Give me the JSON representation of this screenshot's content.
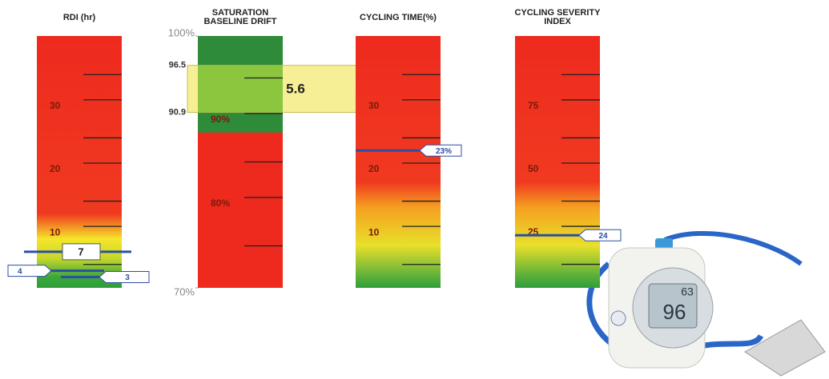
{
  "chart_data": [
    {
      "type": "gauge",
      "title": [
        "RDI (hr)"
      ],
      "ylim": [
        1.3,
        41.1
      ],
      "yticks": [
        10,
        20,
        30
      ],
      "minor_ticks": [
        5,
        15,
        25,
        35
      ],
      "gradient": [
        [
          1.3,
          "#2e9e3a"
        ],
        [
          3,
          "#3aa83a"
        ],
        [
          6,
          "#c8d82a"
        ],
        [
          9,
          "#f5e62a"
        ],
        [
          13,
          "#f03a20"
        ],
        [
          41.1,
          "#ee2a1e"
        ]
      ],
      "markers": {
        "values": [
          7,
          4,
          3
        ],
        "shapes": [
          "box",
          "flag-left",
          "flag-right"
        ]
      }
    },
    {
      "type": "band",
      "title": [
        "SATURATION",
        "BASELINE DRIFT"
      ],
      "ylim": [
        70,
        100
      ],
      "yticks": [
        {
          "value": 70,
          "label": "70%"
        },
        {
          "value": 80,
          "label": "80%"
        },
        {
          "value": 90,
          "label": "90%"
        },
        {
          "value": 100,
          "label": "100%"
        }
      ],
      "minor_ticks": [
        75,
        85,
        95
      ],
      "green_above": 88.5,
      "band": [
        90.9,
        96.5
      ],
      "band_value": 5.6
    },
    {
      "type": "gauge",
      "title": [
        "CYCLING TIME(%)"
      ],
      "ylim": [
        1.3,
        41.1
      ],
      "yticks": [
        10,
        20,
        30
      ],
      "minor_ticks": [
        5,
        15,
        25,
        35
      ],
      "gradient": [
        [
          1.3,
          "#2e9e3a"
        ],
        [
          3,
          "#5ab03a"
        ],
        [
          8,
          "#e8e02a"
        ],
        [
          14,
          "#f5a020"
        ],
        [
          18,
          "#f03a20"
        ],
        [
          41.1,
          "#ee2a1e"
        ]
      ],
      "markers": {
        "values": [
          23
        ],
        "value_labels": [
          "23%"
        ],
        "shapes": [
          "flag-right"
        ]
      }
    },
    {
      "type": "gauge",
      "title": [
        "CYCLING SEVERITY",
        "INDEX"
      ],
      "ylim": [
        3.2,
        102.8
      ],
      "yticks": [
        25,
        50,
        75
      ],
      "minor_ticks": [
        12.5,
        37.5,
        62.5,
        87.5
      ],
      "gradient": [
        [
          3.2,
          "#2e9e3a"
        ],
        [
          8,
          "#5ab03a"
        ],
        [
          20,
          "#e8e02a"
        ],
        [
          35,
          "#f5a020"
        ],
        [
          45,
          "#f03a20"
        ],
        [
          102.8,
          "#ee2a1e"
        ]
      ],
      "markers": {
        "values": [
          24
        ],
        "shapes": [
          "flag-right"
        ]
      }
    }
  ],
  "device": {
    "readings": [
      "63",
      "96"
    ]
  }
}
